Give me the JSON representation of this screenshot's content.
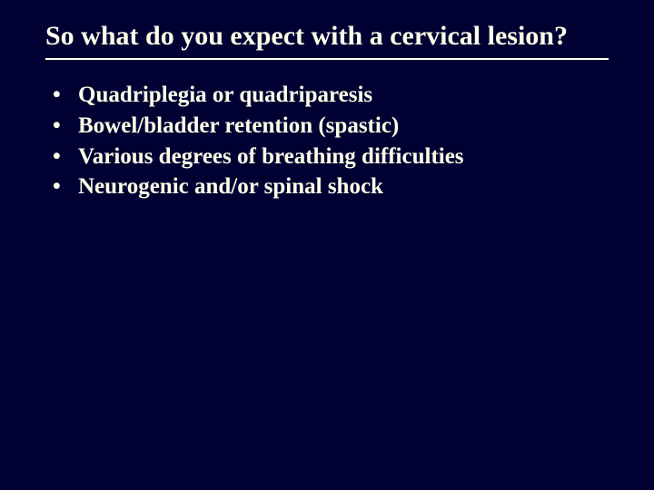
{
  "slide": {
    "title": "So what do you expect with a cervical lesion?",
    "bullets": [
      "Quadriplegia or quadriparesis",
      "Bowel/bladder retention (spastic)",
      "Various degrees of breathing difficulties",
      "Neurogenic and/or spinal shock"
    ]
  },
  "style": {
    "background_color": "#000033",
    "text_color": "#ffffe8",
    "title_fontsize": 30,
    "bullet_fontsize": 25,
    "font_family": "Times New Roman",
    "rule_color": "#ffffe8",
    "rule_thickness": 2
  }
}
